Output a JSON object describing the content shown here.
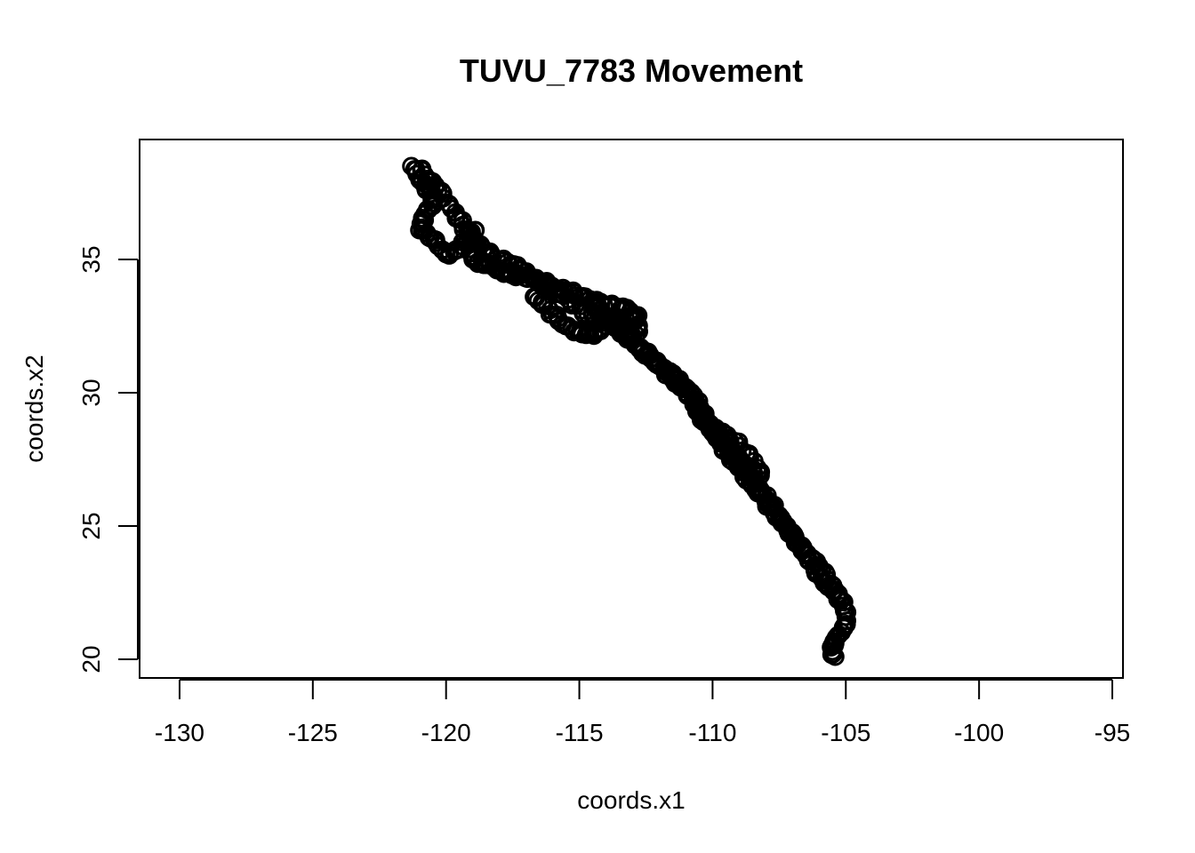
{
  "chart_data": {
    "type": "scatter",
    "title": "TUVU_7783 Movement",
    "xlabel": "coords.x1",
    "ylabel": "coords.x2",
    "xlim": [
      -131.5,
      -94.6
    ],
    "ylim": [
      19.3,
      39.5
    ],
    "x_ticks": [
      -130,
      -125,
      -120,
      -115,
      -110,
      -105,
      -100,
      -95
    ],
    "y_ticks": [
      20,
      25,
      30,
      35
    ],
    "x_tick_labels": [
      "-130",
      "-125",
      "-120",
      "-115",
      "-110",
      "-105",
      "-100",
      "-95"
    ],
    "y_tick_labels": [
      "20",
      "25",
      "30",
      "35"
    ],
    "grid": false,
    "legend": "none",
    "marker": "open-circle",
    "color": "#000000",
    "series": [
      {
        "x": [
          -121.3,
          -121.1,
          -120.9,
          -120.6,
          -120.4,
          -120.5,
          -120.8,
          -120.9,
          -121.0,
          -120.6,
          -120.3,
          -120.0,
          -119.7,
          -119.4,
          -119.1,
          -118.9,
          -119.1,
          -119.0,
          -118.8,
          -118.5,
          -118.2,
          -117.9,
          -117.6,
          -117.3,
          -117.0,
          -116.6,
          -116.2,
          -115.8,
          -115.4,
          -115.0,
          -114.6,
          -114.2,
          -113.8,
          -113.4,
          -113.1,
          -112.9,
          -112.8,
          -113.0,
          -113.5,
          -114.0,
          -114.3,
          -113.7,
          -113.2,
          -112.7,
          -112.3,
          -112.0,
          -111.6,
          -111.3,
          -111.0,
          -110.7,
          -110.5,
          -110.3,
          -110.0,
          -109.7,
          -109.4,
          -109.1,
          -108.9,
          -108.6,
          -108.3,
          -108.0,
          -107.7,
          -107.4,
          -107.1,
          -106.8,
          -106.5,
          -106.2,
          -105.9,
          -105.6,
          -105.3,
          -105.1,
          -105.0,
          -105.1,
          -105.3,
          -105.4,
          -105.5,
          -105.4,
          -120.9,
          -120.7,
          -120.4,
          -120.1,
          -119.8,
          -119.5,
          -119.2,
          -118.9,
          -118.6,
          -118.3,
          -117.9,
          -117.6,
          -117.2,
          -116.9,
          -116.5,
          -116.1,
          -115.7,
          -115.3,
          -114.9,
          -114.5,
          -114.1,
          -113.8,
          -113.4,
          -113.0,
          -112.7,
          -112.4,
          -112.1,
          -111.8,
          -111.5,
          -111.2,
          -110.9,
          -110.6,
          -110.3,
          -110.0,
          -109.7,
          -109.3,
          -109.0,
          -108.7,
          -108.4,
          -108.1,
          -107.8,
          -107.5,
          -107.2,
          -106.9,
          -106.6,
          -106.3,
          -106.0,
          -105.7,
          -105.4,
          -105.2,
          -116.7,
          -116.4,
          -116.1,
          -115.8,
          -115.5,
          -115.2,
          -114.9,
          -114.6,
          -114.3,
          -114.0,
          -113.7,
          -113.4,
          -113.1,
          -112.8,
          -110.6,
          -110.3,
          -110.0,
          -109.7,
          -109.4,
          -109.1,
          -108.8,
          -108.5,
          -108.2,
          -108.6,
          -109.0,
          -109.4,
          -109.8,
          -110.2,
          -110.5
        ],
        "y": [
          38.5,
          38.2,
          37.9,
          37.6,
          37.3,
          37.0,
          36.7,
          36.4,
          36.1,
          35.8,
          35.5,
          35.2,
          35.3,
          35.5,
          35.8,
          36.1,
          35.4,
          35.0,
          34.9,
          34.8,
          34.7,
          34.6,
          34.5,
          34.4,
          34.3,
          34.2,
          34.1,
          33.9,
          33.8,
          33.6,
          33.5,
          33.4,
          33.3,
          33.2,
          33.0,
          32.7,
          32.4,
          32.1,
          32.5,
          32.9,
          33.2,
          32.6,
          32.0,
          31.6,
          31.3,
          31.0,
          30.8,
          30.5,
          30.2,
          29.9,
          29.5,
          29.1,
          28.7,
          28.3,
          27.9,
          27.5,
          27.1,
          26.7,
          26.3,
          25.9,
          25.5,
          25.1,
          24.7,
          24.3,
          23.9,
          23.5,
          23.1,
          22.7,
          22.3,
          22.0,
          21.6,
          21.2,
          20.9,
          20.6,
          20.3,
          20.1,
          38.4,
          38.0,
          37.7,
          37.3,
          36.9,
          36.5,
          36.1,
          35.7,
          35.4,
          35.2,
          35.0,
          34.8,
          34.6,
          34.4,
          34.2,
          34.0,
          33.7,
          33.4,
          33.1,
          32.9,
          32.8,
          32.6,
          32.3,
          32.0,
          31.7,
          31.4,
          31.1,
          30.8,
          30.5,
          30.2,
          29.9,
          29.5,
          29.1,
          28.7,
          28.3,
          27.9,
          27.5,
          27.0,
          26.6,
          26.2,
          25.8,
          25.4,
          25.0,
          24.6,
          24.2,
          23.8,
          23.4,
          23.0,
          22.6,
          22.2,
          33.6,
          33.4,
          33.1,
          32.8,
          32.5,
          32.3,
          32.2,
          32.2,
          32.3,
          32.5,
          32.7,
          32.8,
          32.8,
          32.9,
          29.3,
          28.9,
          28.5,
          28.1,
          27.7,
          27.4,
          27.2,
          27.1,
          26.9,
          27.6,
          28.0,
          28.3,
          28.6,
          28.9,
          29.2
        ]
      }
    ]
  }
}
